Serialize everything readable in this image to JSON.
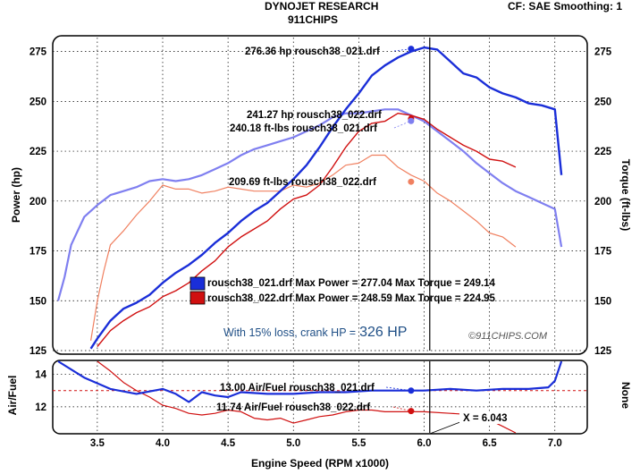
{
  "header": {
    "company": "DYNOJET RESEARCH",
    "shop": "911CHIPS",
    "cf_label": "CF: SAE  Smoothing: 1"
  },
  "colors": {
    "run1": "#1a2ed8",
    "run1_light": "#7f7ff0",
    "run2": "#d01010",
    "run2_light": "#f08060",
    "frame": "#000000",
    "panel": "#ffffff",
    "bg": "#e6e6e6"
  },
  "chart_data": [
    {
      "type": "line",
      "name": "main",
      "xlabel": "Engine Speed (RPM x1000)",
      "ylabel": "Power (hp)",
      "ylabel_right": "Torque (ft-lbs)",
      "xlim": [
        3.2,
        7.2
      ],
      "ylim": [
        125,
        282
      ],
      "yticks": [
        125,
        150,
        175,
        200,
        225,
        250,
        275
      ],
      "xticks": [
        3.5,
        4.0,
        4.5,
        5.0,
        5.5,
        6.0,
        6.5,
        7.0
      ],
      "grid": true,
      "cursor_x": 6.043,
      "series": [
        {
          "name": "rousch38_021.drf",
          "measure": "Power",
          "color": "#1a2ed8",
          "x": [
            3.45,
            3.5,
            3.6,
            3.7,
            3.8,
            3.9,
            4.0,
            4.1,
            4.2,
            4.3,
            4.4,
            4.5,
            4.6,
            4.7,
            4.8,
            4.9,
            5.0,
            5.1,
            5.2,
            5.3,
            5.4,
            5.5,
            5.6,
            5.7,
            5.8,
            5.9,
            6.0,
            6.1,
            6.2,
            6.3,
            6.4,
            6.5,
            6.6,
            6.7,
            6.8,
            6.9,
            7.0,
            7.05
          ],
          "y": [
            126,
            131,
            140,
            146,
            149,
            153,
            159,
            164,
            168,
            173,
            179,
            184,
            190,
            195,
            199,
            205,
            211,
            218,
            227,
            237,
            246,
            254,
            263,
            268,
            272,
            275,
            277,
            276,
            270,
            264,
            262,
            257,
            254,
            252,
            249,
            248,
            246,
            213
          ]
        },
        {
          "name": "rousch38_022.drf",
          "measure": "Power",
          "color": "#d01010",
          "x": [
            3.5,
            3.6,
            3.7,
            3.8,
            3.9,
            4.0,
            4.1,
            4.2,
            4.3,
            4.4,
            4.5,
            4.6,
            4.7,
            4.8,
            4.9,
            5.0,
            5.1,
            5.2,
            5.3,
            5.4,
            5.5,
            5.6,
            5.7,
            5.8,
            5.9,
            6.0,
            6.1,
            6.2,
            6.3,
            6.4,
            6.5,
            6.6,
            6.7
          ],
          "y": [
            127,
            135,
            140,
            144,
            147,
            152,
            155,
            159,
            165,
            170,
            177,
            182,
            186,
            190,
            196,
            201,
            203,
            208,
            217,
            227,
            235,
            239,
            240,
            244,
            243,
            241,
            236,
            232,
            228,
            225,
            221,
            220,
            217
          ]
        },
        {
          "name": "rousch38_021.drf",
          "measure": "Torque",
          "color": "#7f7ff0",
          "x": [
            3.2,
            3.25,
            3.3,
            3.35,
            3.4,
            3.5,
            3.6,
            3.7,
            3.8,
            3.9,
            4.0,
            4.1,
            4.2,
            4.3,
            4.4,
            4.5,
            4.6,
            4.7,
            4.8,
            4.9,
            5.0,
            5.1,
            5.2,
            5.3,
            5.4,
            5.5,
            5.6,
            5.7,
            5.8,
            5.9,
            6.0,
            6.1,
            6.2,
            6.3,
            6.4,
            6.5,
            6.6,
            6.7,
            6.8,
            6.9,
            7.0,
            7.05
          ],
          "y": [
            150,
            162,
            178,
            185,
            192,
            198,
            203,
            205,
            207,
            210,
            211,
            210,
            211,
            213,
            216,
            219,
            223,
            226,
            228,
            230,
            232,
            235,
            238,
            242,
            244,
            244,
            245,
            246,
            246,
            243,
            240,
            235,
            230,
            225,
            219,
            214,
            209,
            205,
            202,
            199,
            196,
            177
          ]
        },
        {
          "name": "rousch38_022.drf",
          "measure": "Torque",
          "color": "#f08060",
          "x": [
            3.45,
            3.5,
            3.55,
            3.6,
            3.7,
            3.8,
            3.9,
            4.0,
            4.1,
            4.2,
            4.3,
            4.4,
            4.5,
            4.6,
            4.7,
            4.8,
            4.9,
            5.0,
            5.1,
            5.2,
            5.3,
            5.4,
            5.5,
            5.6,
            5.7,
            5.8,
            5.9,
            6.0,
            6.1,
            6.2,
            6.3,
            6.4,
            6.5,
            6.6,
            6.7
          ],
          "y": [
            130,
            150,
            165,
            178,
            185,
            193,
            200,
            208,
            206,
            206,
            204,
            205,
            207,
            206,
            205,
            205,
            205,
            208,
            207,
            209,
            213,
            218,
            219,
            223,
            223,
            217,
            213,
            210,
            204,
            200,
            195,
            190,
            184,
            182,
            177
          ]
        }
      ]
    },
    {
      "type": "line",
      "name": "afr",
      "ylabel": "Air/Fuel",
      "ylabel_right": "None",
      "xlim": [
        3.2,
        7.2
      ],
      "ylim": [
        10.4,
        14.8
      ],
      "yticks": [
        12,
        14
      ],
      "xticks": [
        3.5,
        4.0,
        4.5,
        5.0,
        5.5,
        6.0,
        6.5,
        7.0
      ],
      "reference_line": 13.0,
      "series": [
        {
          "name": "rousch38_021.drf",
          "measure": "Air/Fuel",
          "color": "#1a2ed8",
          "x": [
            3.2,
            3.4,
            3.6,
            3.8,
            4.0,
            4.1,
            4.2,
            4.3,
            4.4,
            4.5,
            4.6,
            4.8,
            5.0,
            5.2,
            5.4,
            5.6,
            5.8,
            6.0,
            6.2,
            6.4,
            6.6,
            6.8,
            6.95,
            7.0,
            7.05
          ],
          "y": [
            14.8,
            13.8,
            13.1,
            12.8,
            13.1,
            12.8,
            12.3,
            12.9,
            12.7,
            12.6,
            12.9,
            12.8,
            12.8,
            12.9,
            12.9,
            13.0,
            13.0,
            13.0,
            13.1,
            13.0,
            13.1,
            13.1,
            13.2,
            13.6,
            14.8
          ]
        },
        {
          "name": "rousch38_022.drf",
          "measure": "Air/Fuel",
          "color": "#d01010",
          "x": [
            3.5,
            3.6,
            3.7,
            3.8,
            3.9,
            4.0,
            4.1,
            4.2,
            4.3,
            4.4,
            4.5,
            4.6,
            4.7,
            4.8,
            4.9,
            5.0,
            5.1,
            5.2,
            5.3,
            5.4,
            5.5,
            5.6,
            5.7,
            5.8,
            5.9,
            6.0,
            6.2,
            6.4,
            6.5,
            6.6,
            6.7
          ],
          "y": [
            14.8,
            14.2,
            13.5,
            13.0,
            12.6,
            12.1,
            11.9,
            11.6,
            11.5,
            11.6,
            11.8,
            11.7,
            11.3,
            11.2,
            11.3,
            11.0,
            11.2,
            11.4,
            11.5,
            11.7,
            11.8,
            11.8,
            11.7,
            11.7,
            11.7,
            11.7,
            11.6,
            11.5,
            11.2,
            10.8,
            10.4
          ]
        }
      ]
    }
  ],
  "annotations": {
    "peak_hp_021": "276.36 hp rousch38_021.drf",
    "peak_hp_022": "241.27 hp rousch38_022.drf",
    "tq_021": "240.18 ft-lbs rousch38_021.drf",
    "tq_022": "209.69 ft-lbs rousch38_022.drf",
    "legend_021": "rousch38_021.drf Max Power = 277.04 Max Torque = 249.14",
    "legend_022": "rousch38_022.drf Max Power = 248.59 Max Torque = 224.95",
    "loss_note": "With 15% loss, crank HP =",
    "crank_hp": "326 HP",
    "watermark": "©911CHIPS.COM",
    "afr_021": "13.00 Air/Fuel rousch38_021.drf",
    "afr_022": "11.74 Air/Fuel rousch38_022.drf",
    "cursor_readout": "X = 6.043"
  }
}
